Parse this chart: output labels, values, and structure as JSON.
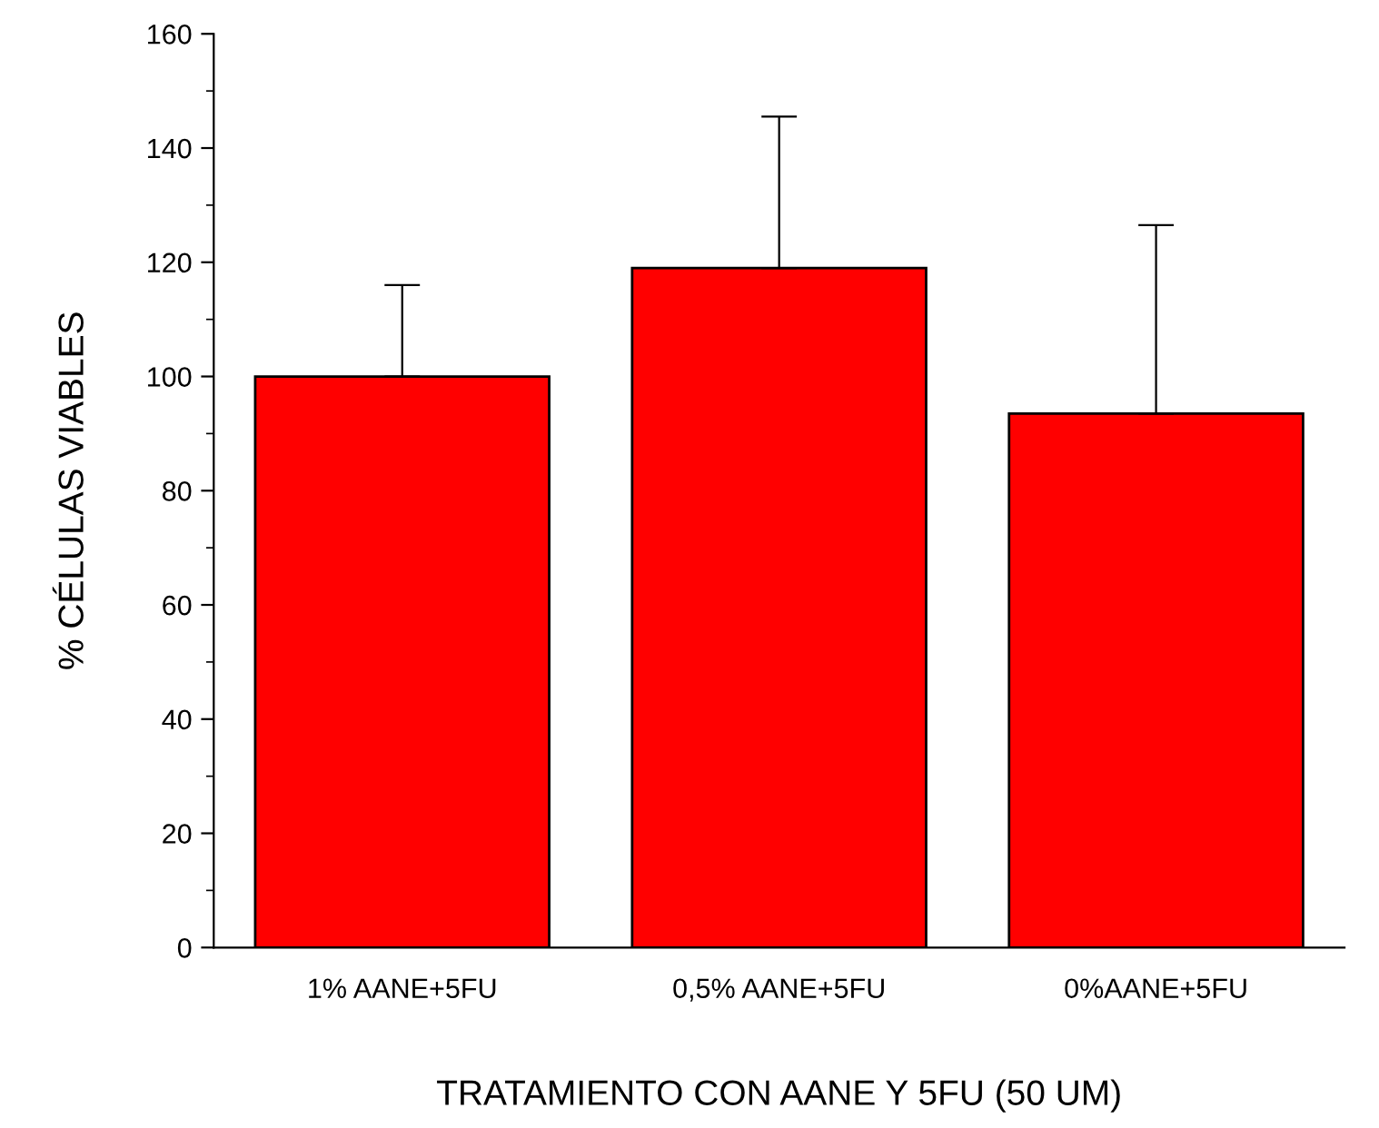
{
  "chart_data": {
    "type": "bar",
    "xlabel": "TRATAMIENTO CON AANE Y 5FU (50 UM)",
    "ylabel": "% CÉLULAS VIABLES",
    "categories": [
      "1% AANE+5FU",
      "0,5% AANE+5FU",
      "0%AANE+5FU"
    ],
    "values": [
      100,
      119,
      93.5
    ],
    "errors": [
      [
        100,
        116
      ],
      [
        119,
        145.5
      ],
      [
        93.5,
        126.5
      ]
    ],
    "color": "#ff0000",
    "ylim": [
      0,
      160
    ],
    "yticks": [
      0,
      20,
      40,
      60,
      80,
      100,
      120,
      140,
      160
    ],
    "grid": false,
    "legend": false
  }
}
